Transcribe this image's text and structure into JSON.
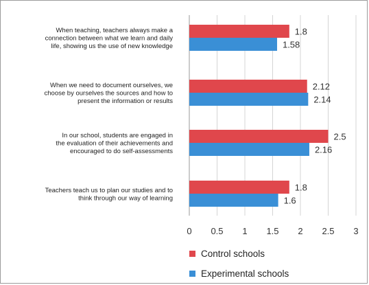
{
  "chart_data": {
    "type": "bar",
    "orientation": "horizontal",
    "categories": [
      "When teaching, teachers always make a connection between what we learn and daily life, showing us the use of new knowledge",
      "When we need to document ourselves, we choose by ourselves the sources and how to present the information or results",
      "In our school, students are engaged in the evaluation of their achievements and encouraged to do self-assessments",
      "Teachers teach us to plan our studies and to think through our way of learning"
    ],
    "category_lines": [
      [
        "When teaching, teachers always make a",
        "connection between what we learn and daily",
        "life, showing us the use of new knowledge"
      ],
      [
        "When we need to document ourselves, we",
        "choose by ourselves the sources and how to",
        "present the information or results"
      ],
      [
        "In our school, students are engaged in",
        "the evaluation of their achievements and",
        "encouraged to do self-assessments"
      ],
      [
        "Teachers teach us to plan our studies and to",
        "think through our way of learning"
      ]
    ],
    "series": [
      {
        "name": "Control schools",
        "color": "#e0474c",
        "values": [
          1.8,
          2.12,
          2.5,
          1.8
        ],
        "labels": [
          "1.8",
          "2.12",
          "2.5",
          "1.8"
        ]
      },
      {
        "name": "Experimental schools",
        "color": "#3a8fd6",
        "values": [
          1.58,
          2.14,
          2.16,
          1.6
        ],
        "labels": [
          "1.58",
          "2.14",
          "2.16",
          "1.6"
        ]
      }
    ],
    "xlim": [
      0,
      3
    ],
    "xticks": [
      "0",
      "0.5",
      "1",
      "1.5",
      "2",
      "2.5",
      "3"
    ],
    "grid": true,
    "legend_position": "bottom-left",
    "title": "",
    "xlabel": "",
    "ylabel": ""
  }
}
